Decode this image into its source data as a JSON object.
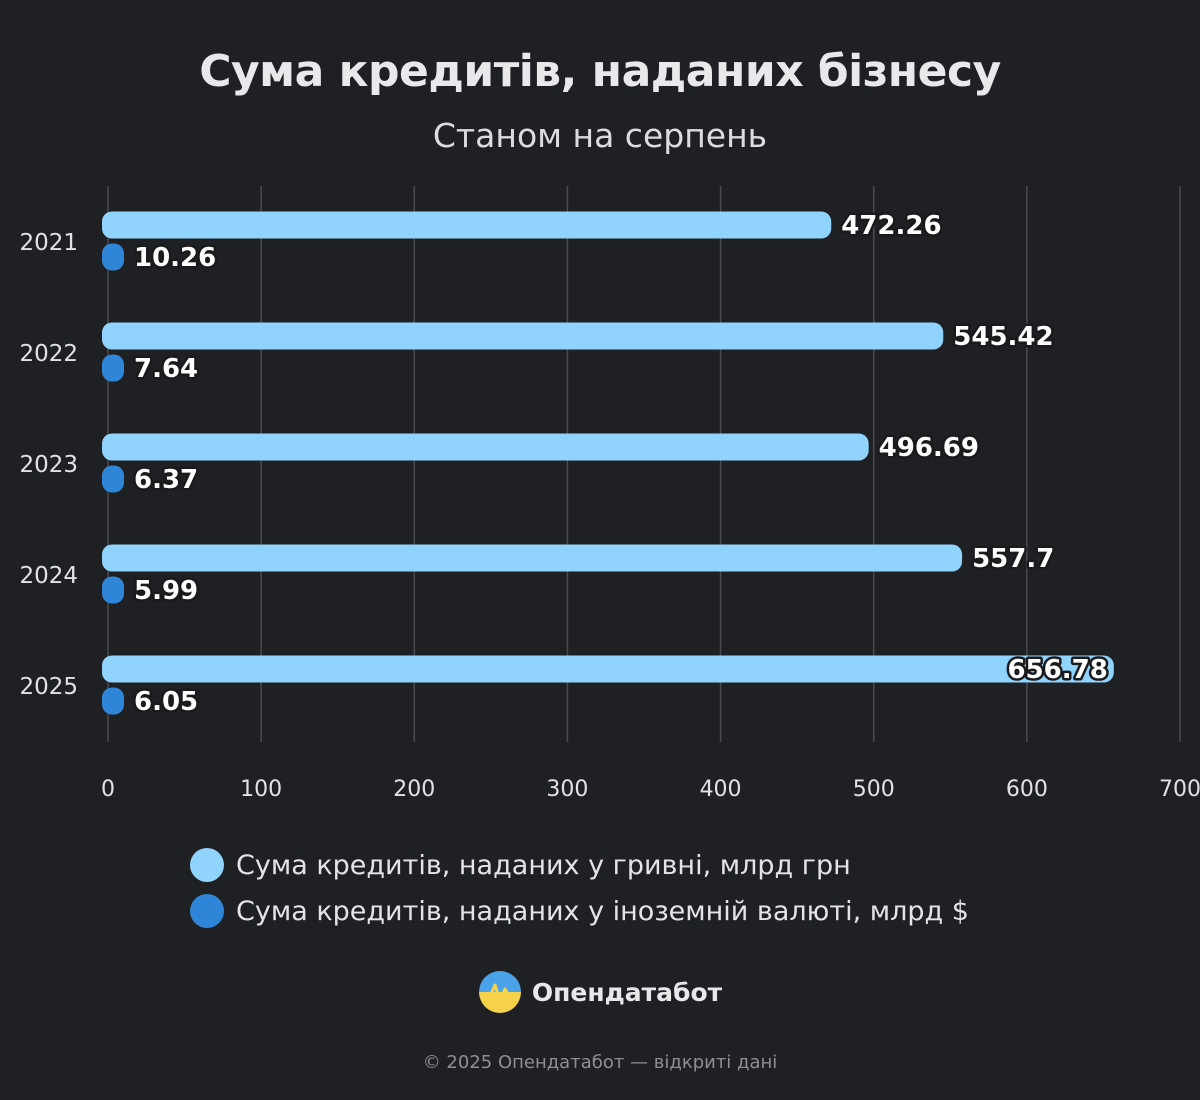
{
  "chart_data": {
    "type": "bar",
    "orientation": "horizontal",
    "title": "Сума кредитів, наданих бізнесу",
    "subtitle": "Станом на серпень",
    "categories": [
      "2021",
      "2022",
      "2023",
      "2024",
      "2025"
    ],
    "series": [
      {
        "name": "Сума кредитів, наданих у гривні, млрд грн",
        "values": [
          472.26,
          545.42,
          496.69,
          557.7,
          656.78
        ],
        "color": "#8fd3fe"
      },
      {
        "name": "Сума кредитів, наданих у іноземній валюті, млрд $",
        "values": [
          10.26,
          7.64,
          6.37,
          5.99,
          6.05
        ],
        "color": "#2f86d9"
      }
    ],
    "xlim": [
      0,
      700
    ],
    "xticks": [
      "0",
      "100",
      "200",
      "300",
      "400",
      "500",
      "600",
      "700"
    ],
    "grid": true,
    "legend": "bottom"
  },
  "brand": {
    "name": "Опендатабот",
    "icon": "opendatabot-logo-icon"
  },
  "footer": "© 2025 Опендатабот — відкриті дані"
}
